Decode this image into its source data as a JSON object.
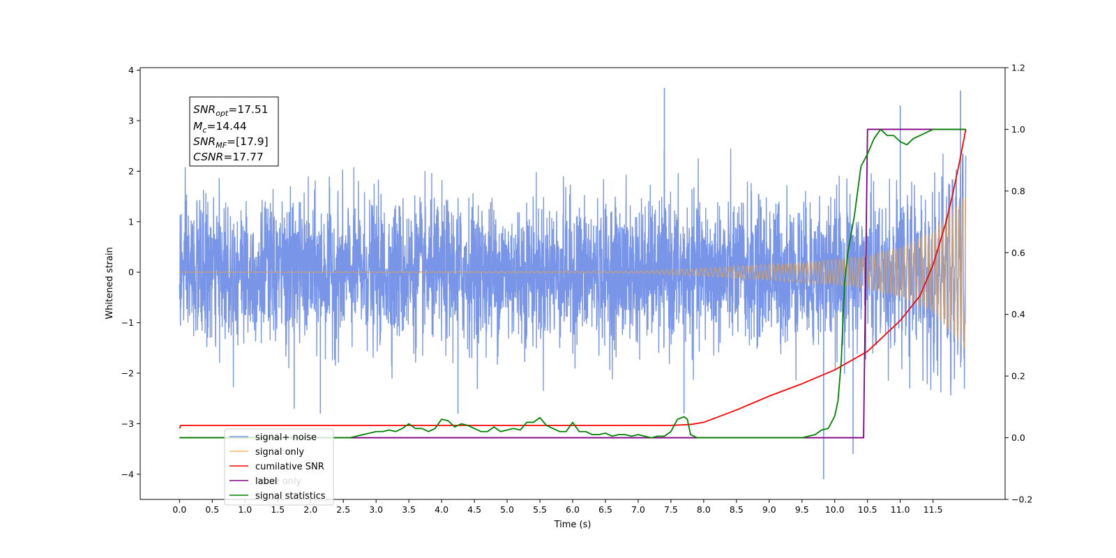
{
  "chart_data": {
    "type": "line",
    "xlabel": "Time (s)",
    "ylabel_left": "Whitened strain",
    "ylabel_right": "",
    "xlim": [
      -0.6,
      12.6
    ],
    "ylim_left": [
      -4.5,
      4.05
    ],
    "ylim_right": [
      -0.2,
      1.2
    ],
    "x_ticks": [
      0.0,
      0.5,
      1.0,
      1.5,
      2.0,
      2.5,
      3.0,
      3.5,
      4.0,
      4.5,
      5.0,
      5.5,
      6.0,
      6.5,
      7.0,
      7.5,
      8.0,
      8.5,
      9.0,
      9.5,
      10.0,
      10.5,
      11.0,
      11.5
    ],
    "x_tick_labels": [
      "0.0",
      "0.5",
      "1.0",
      "1.5",
      "2.0",
      "2.5",
      "3.0",
      "3.5",
      "4.0",
      "4.5",
      "5.0",
      "5.5",
      "6.0",
      "6.5",
      "7.0",
      "7.5",
      "8.0",
      "8.5",
      "9.0",
      "9.5",
      "10.0",
      "10.5",
      "11.0",
      "11.5"
    ],
    "y_left_ticks": [
      4,
      3,
      2,
      1,
      0,
      -1,
      -2,
      -3,
      -4
    ],
    "y_left_tick_labels": [
      "4",
      "3",
      "2",
      "1",
      "0",
      "−1",
      "−2",
      "−3",
      "−4"
    ],
    "y_right_ticks": [
      1.2,
      1.0,
      0.8,
      0.6,
      0.4,
      0.2,
      0.0,
      -0.2
    ],
    "y_right_tick_labels": [
      "1.2",
      "1.0",
      "0.8",
      "0.6",
      "0.4",
      "0.2",
      "0.0",
      "−0.2"
    ],
    "grid": false,
    "legend_position": "lower-left",
    "annotation": {
      "lines": [
        {
          "base": "SNR",
          "sub": "opt",
          "rest": "=17.51"
        },
        {
          "base": "M",
          "sub": "c",
          "rest": "=14.44"
        },
        {
          "base": "SNR",
          "sub": "MF",
          "rest": "=[17.9]"
        },
        {
          "base": "CSNR",
          "sub": "",
          "rest": "=17.77"
        }
      ]
    },
    "series": [
      {
        "name": "signal+ noise",
        "axis": "left",
        "color": "#7895e8",
        "kind": "noise",
        "noise_sigma": 0.7,
        "t_start": 0.0,
        "t_end": 12.0,
        "peaks": [
          [
            7.4,
            3.65
          ],
          [
            11.0,
            3.3
          ],
          [
            11.92,
            3.6
          ],
          [
            9.83,
            -4.1
          ],
          [
            10.28,
            -3.6
          ],
          [
            1.75,
            -2.7
          ],
          [
            2.15,
            -2.8
          ],
          [
            4.25,
            -2.8
          ],
          [
            7.7,
            -2.8
          ]
        ]
      },
      {
        "name": "signal only",
        "axis": "left",
        "color": "#f5b86a",
        "kind": "chirp",
        "envelope": [
          [
            0.0,
            0.0
          ],
          [
            7.0,
            0.02
          ],
          [
            7.5,
            0.05
          ],
          [
            8.0,
            0.08
          ],
          [
            8.5,
            0.12
          ],
          [
            9.0,
            0.16
          ],
          [
            9.5,
            0.2
          ],
          [
            10.0,
            0.25
          ],
          [
            10.5,
            0.33
          ],
          [
            11.0,
            0.5
          ],
          [
            11.5,
            0.8
          ],
          [
            11.8,
            1.25
          ],
          [
            12.0,
            1.55
          ]
        ]
      },
      {
        "name": "cumilative SNR",
        "axis": "right",
        "color": "#ff0000",
        "x": [
          0.0,
          0.02,
          7.5,
          7.8,
          8.0,
          8.5,
          9.0,
          9.5,
          10.0,
          10.5,
          11.0,
          11.3,
          11.5,
          11.7,
          11.8,
          11.9,
          12.0
        ],
        "y": [
          0.03,
          0.04,
          0.04,
          0.043,
          0.05,
          0.09,
          0.135,
          0.175,
          0.22,
          0.28,
          0.38,
          0.46,
          0.56,
          0.7,
          0.79,
          0.89,
          1.0
        ]
      },
      {
        "name": "label",
        "axis": "right",
        "color": "#800080",
        "x": [
          0.0,
          10.44,
          10.5,
          12.0
        ],
        "y": [
          0.0,
          0.0,
          1.0,
          1.0
        ]
      },
      {
        "name": "noise only",
        "axis": "left",
        "color": "#f8f8f8",
        "x": [
          0.0,
          12.0
        ],
        "y": [
          -2.7,
          -2.7
        ]
      },
      {
        "name": "signal statistics",
        "axis": "right",
        "color": "#008000",
        "x": [
          0.0,
          2.6,
          2.8,
          2.9,
          3.0,
          3.1,
          3.2,
          3.3,
          3.4,
          3.5,
          3.6,
          3.7,
          3.8,
          3.9,
          4.0,
          4.1,
          4.2,
          4.3,
          4.4,
          4.5,
          4.6,
          4.7,
          4.8,
          4.9,
          5.0,
          5.1,
          5.2,
          5.3,
          5.4,
          5.5,
          5.6,
          5.7,
          5.8,
          5.9,
          6.0,
          6.1,
          6.2,
          6.3,
          6.4,
          6.5,
          6.6,
          6.7,
          6.8,
          6.9,
          7.0,
          7.1,
          7.2,
          7.3,
          7.4,
          7.5,
          7.6,
          7.7,
          7.75,
          7.8,
          7.9,
          8.0,
          9.5,
          9.6,
          9.7,
          9.8,
          9.9,
          10.0,
          10.05,
          10.1,
          10.15,
          10.2,
          10.3,
          10.4,
          10.5,
          10.6,
          10.7,
          10.8,
          10.9,
          11.0,
          11.1,
          11.2,
          11.3,
          11.5,
          12.0
        ],
        "y": [
          0.0,
          0.0,
          0.01,
          0.015,
          0.02,
          0.02,
          0.025,
          0.02,
          0.03,
          0.045,
          0.03,
          0.03,
          0.02,
          0.03,
          0.06,
          0.055,
          0.035,
          0.045,
          0.04,
          0.03,
          0.02,
          0.02,
          0.035,
          0.02,
          0.025,
          0.03,
          0.025,
          0.05,
          0.05,
          0.065,
          0.04,
          0.03,
          0.02,
          0.02,
          0.05,
          0.02,
          0.02,
          0.01,
          0.01,
          0.015,
          0.005,
          0.01,
          0.01,
          0.005,
          0.01,
          0.005,
          0.0,
          0.005,
          0.005,
          0.02,
          0.06,
          0.068,
          0.06,
          0.01,
          0.0,
          0.0,
          0.0,
          0.005,
          0.01,
          0.025,
          0.03,
          0.07,
          0.12,
          0.25,
          0.5,
          0.6,
          0.72,
          0.88,
          0.92,
          0.97,
          1.0,
          0.98,
          0.98,
          0.96,
          0.95,
          0.97,
          0.98,
          1.0,
          1.0
        ]
      }
    ]
  }
}
